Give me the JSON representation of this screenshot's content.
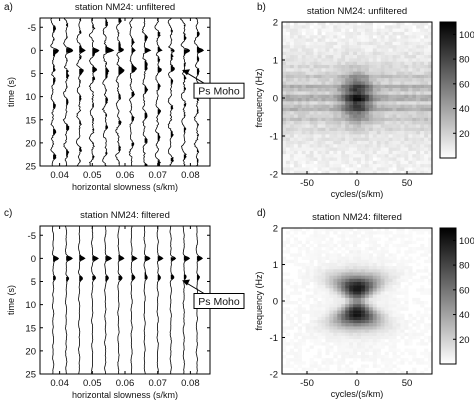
{
  "chart_data": [
    {
      "panel": "a)",
      "type": "line",
      "title": "station NM24: unfiltered",
      "xlabel": "horizontal slowness (s/km)",
      "ylabel": "time (s)",
      "xlim": [
        0.034,
        0.086
      ],
      "ylim": [
        25,
        -7
      ],
      "xticks": [
        0.04,
        0.05,
        0.06,
        0.07,
        0.08
      ],
      "yticks": [
        -5,
        0,
        5,
        10,
        15,
        20,
        25
      ],
      "traces_slowness": [
        0.038,
        0.042,
        0.046,
        0.05,
        0.054,
        0.058,
        0.062,
        0.066,
        0.07,
        0.074,
        0.078,
        0.082
      ],
      "annotation": {
        "text": "Ps Moho",
        "time": 4.5
      },
      "variant": "unfiltered"
    },
    {
      "panel": "b)",
      "type": "heatmap",
      "title": "station NM24: unfiltered",
      "xlabel": "cycles/(s/km)",
      "ylabel": "frequency (Hz)",
      "xlim": [
        -75,
        75
      ],
      "ylim": [
        -2,
        2
      ],
      "xticks": [
        -50,
        0,
        50
      ],
      "yticks": [
        -2,
        -1,
        0,
        1,
        2
      ],
      "colorbar": {
        "ticks": [
          20,
          40,
          60,
          80,
          100
        ],
        "range": [
          0,
          110
        ]
      },
      "variant": "unfiltered"
    },
    {
      "panel": "c)",
      "type": "line",
      "title": "station NM24: filtered",
      "xlabel": "horizontal slowness (s/km)",
      "ylabel": "time (s)",
      "xlim": [
        0.034,
        0.086
      ],
      "ylim": [
        25,
        -7
      ],
      "xticks": [
        0.04,
        0.05,
        0.06,
        0.07,
        0.08
      ],
      "yticks": [
        -5,
        0,
        5,
        10,
        15,
        20,
        25
      ],
      "traces_slowness": [
        0.038,
        0.042,
        0.046,
        0.05,
        0.054,
        0.058,
        0.062,
        0.066,
        0.07,
        0.074,
        0.078,
        0.082
      ],
      "annotation": {
        "text": "Ps Moho",
        "time": 5.0
      },
      "variant": "filtered"
    },
    {
      "panel": "d)",
      "type": "heatmap",
      "title": "station NM24: filtered",
      "xlabel": "cycles/(s/km)",
      "ylabel": "frequency (Hz)",
      "xlim": [
        -75,
        75
      ],
      "ylim": [
        -2,
        2
      ],
      "xticks": [
        -50,
        0,
        50
      ],
      "yticks": [
        -2,
        -1,
        0,
        1,
        2
      ],
      "colorbar": {
        "ticks": [
          20,
          40,
          60,
          80,
          100
        ],
        "range": [
          0,
          110
        ]
      },
      "variant": "filtered"
    }
  ]
}
